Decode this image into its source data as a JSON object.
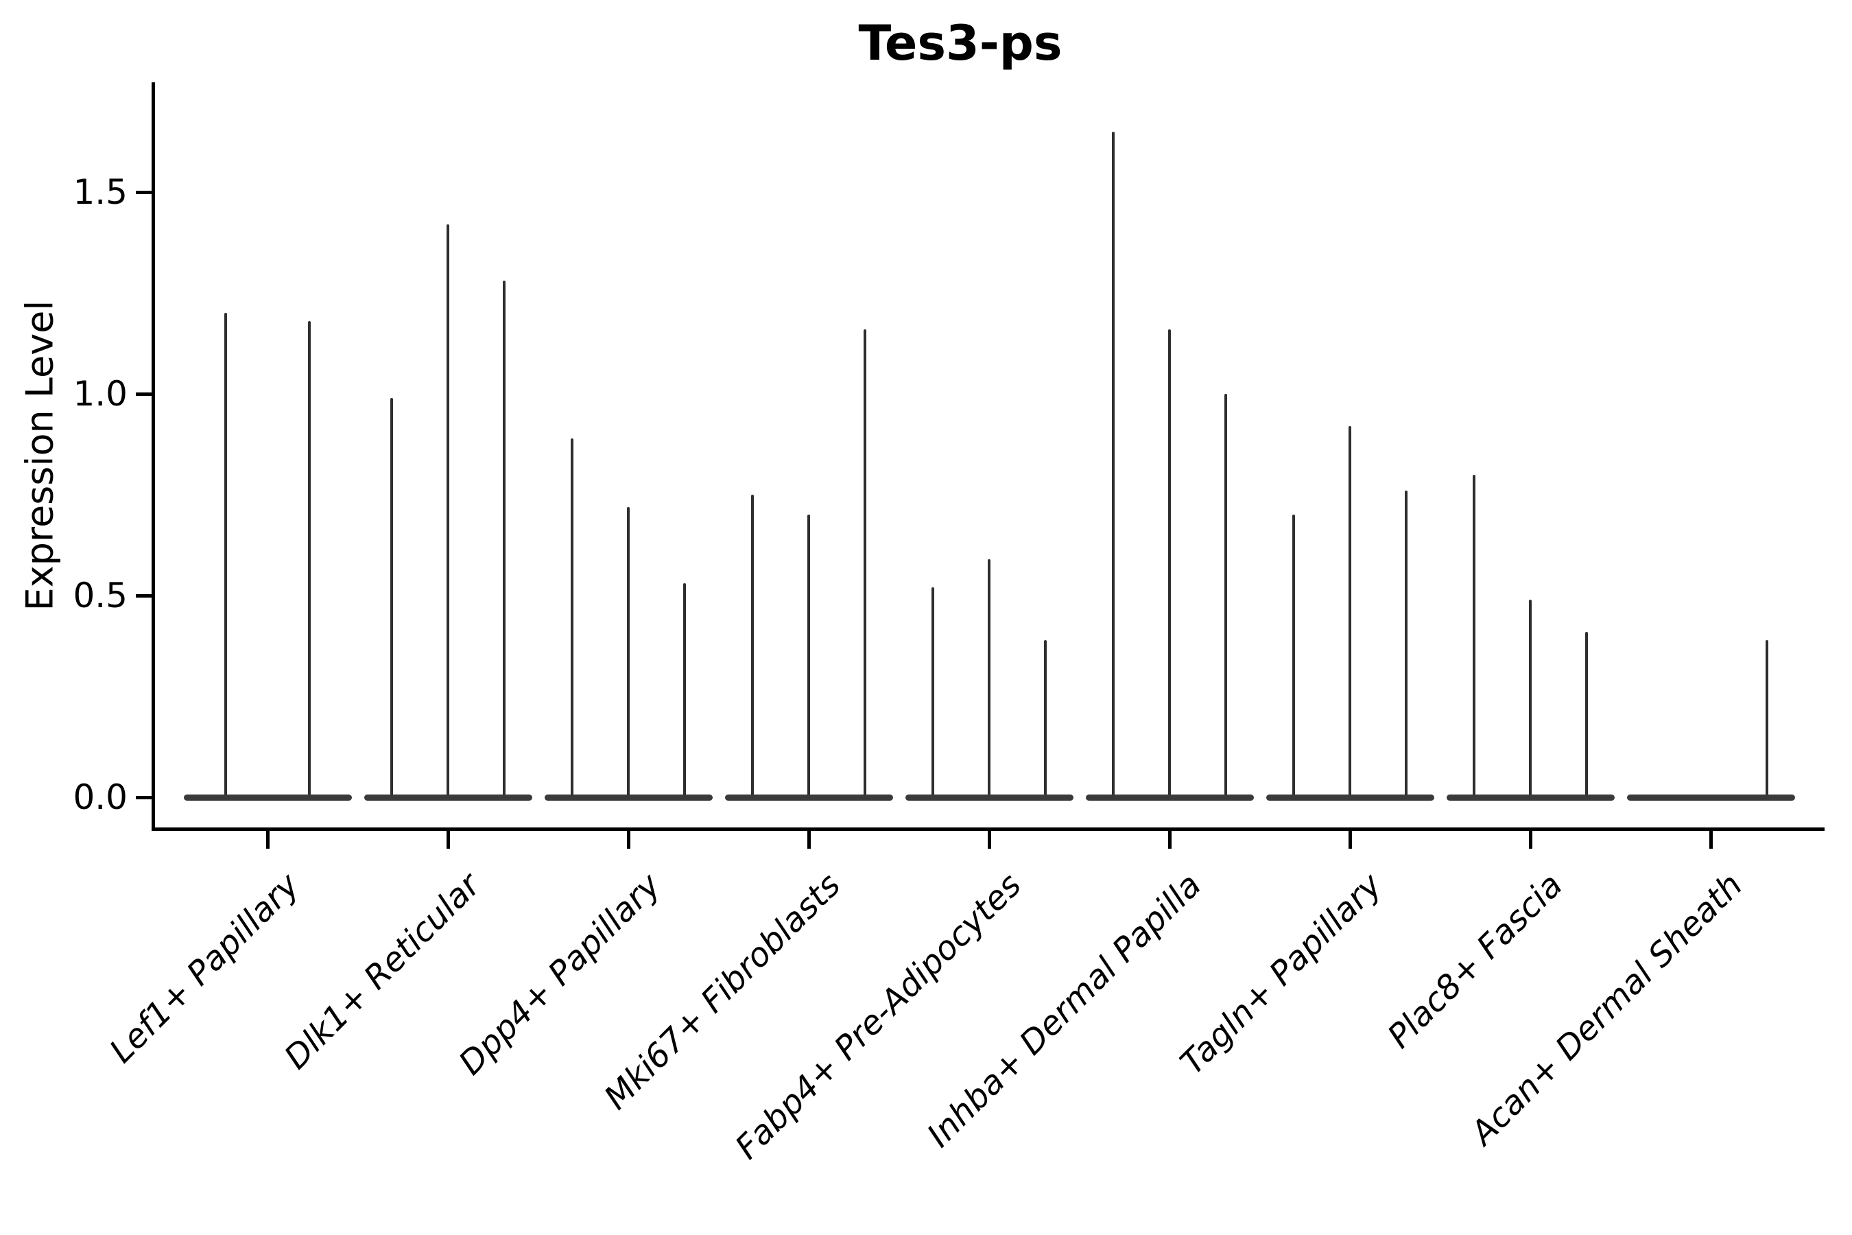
{
  "figure": {
    "title": "Tes3-ps"
  },
  "chart_data": {
    "type": "violin",
    "title": "Tes3-ps",
    "ylabel": "Expression Level",
    "ylim": [
      0,
      1.77
    ],
    "yticks": [
      0.0,
      0.5,
      1.0,
      1.5
    ],
    "ytick_labels": [
      "0.0",
      "0.5",
      "1.0",
      "1.5"
    ],
    "grid": false,
    "legend_position": "none",
    "categories": [
      "Lef1+ Papillary",
      "Dlk1+ Reticular",
      "Dpp4+ Papillary",
      "Mki67+ Fibroblasts",
      "Fabp4+ Pre-Adipocytes",
      "Inhba+ Dermal Papilla",
      "Tagln+ Papillary",
      "Plac8+ Fascia",
      "Acan+ Dermal Sheath"
    ],
    "series": [
      {
        "name": "Lef1+ Papillary",
        "violin_max": [
          1.2,
          1.18
        ]
      },
      {
        "name": "Dlk1+ Reticular",
        "violin_max": [
          0.99,
          1.42,
          1.28
        ]
      },
      {
        "name": "Dpp4+ Papillary",
        "violin_max": [
          0.89,
          0.72,
          0.53
        ]
      },
      {
        "name": "Mki67+ Fibroblasts",
        "violin_max": [
          0.75,
          0.7,
          1.16
        ]
      },
      {
        "name": "Fabp4+ Pre-Adipocytes",
        "violin_max": [
          0.52,
          0.59,
          0.39
        ]
      },
      {
        "name": "Inhba+ Dermal Papilla",
        "violin_max": [
          1.65,
          1.16,
          1.0
        ]
      },
      {
        "name": "Tagln+ Papillary",
        "violin_max": [
          0.7,
          0.92,
          0.76
        ]
      },
      {
        "name": "Plac8+ Fascia",
        "violin_max": [
          0.8,
          0.49,
          0.41
        ]
      },
      {
        "name": "Acan+ Dermal Sheath",
        "violin_max": [
          0.0,
          0.0,
          0.39
        ]
      }
    ],
    "colors": {
      "spike": "#2e2e2e",
      "base_blob": "#3a3a3a",
      "axis": "#000000",
      "text": "#000000",
      "background": "#ffffff"
    }
  }
}
